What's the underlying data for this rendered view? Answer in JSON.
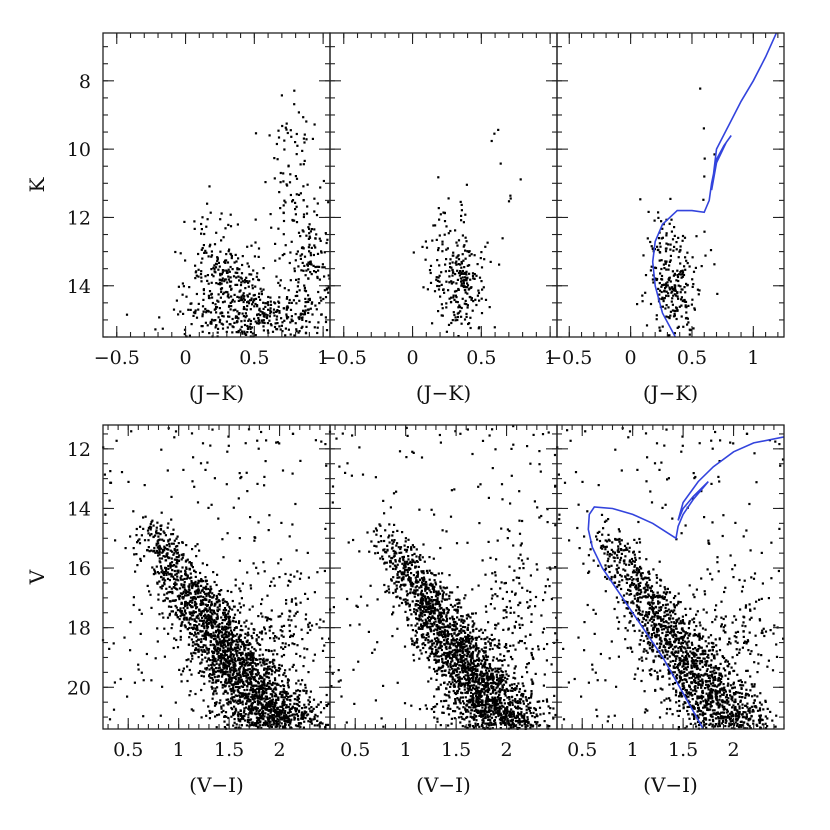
{
  "chart_data": [
    {
      "type": "scatter",
      "group": "top",
      "xlabel": "(J−K)",
      "ylabel": "K",
      "xlim": [
        -0.6,
        1.05
      ],
      "ylim": [
        15.5,
        6.6
      ],
      "x_ticks": [
        -0.5,
        0,
        0.5,
        1
      ],
      "x_tick_labels": [
        "−0.5",
        "0",
        "0.5",
        "1"
      ],
      "y_ticks": [
        8,
        10,
        12,
        14
      ],
      "y_tick_labels": [
        "8",
        "10",
        "12",
        "14"
      ],
      "point_clusters": [
        {
          "cx": 0.55,
          "cy": 14.9,
          "sx": 0.3,
          "sy": 0.4,
          "n": 380
        },
        {
          "cx": 0.3,
          "cy": 13.8,
          "sx": 0.15,
          "sy": 0.6,
          "n": 230
        },
        {
          "cx": 0.9,
          "cy": 13.0,
          "sx": 0.1,
          "sy": 0.8,
          "n": 150
        },
        {
          "cx": 0.75,
          "cy": 11.3,
          "sx": 0.1,
          "sy": 1.0,
          "n": 60
        },
        {
          "cx": 0.8,
          "cy": 9.0,
          "sx": 0.1,
          "sy": 0.7,
          "n": 18
        },
        {
          "cx": 0.2,
          "cy": 12.5,
          "sx": 0.12,
          "sy": 0.8,
          "n": 25
        }
      ]
    },
    {
      "type": "scatter",
      "group": "top",
      "xlabel": "(J−K)",
      "xlim": [
        -0.6,
        1.05
      ],
      "ylim": [
        15.5,
        6.6
      ],
      "x_ticks": [
        -0.5,
        0,
        0.5,
        1
      ],
      "x_tick_labels": [
        "−0.5",
        "0",
        "0.5",
        "1"
      ],
      "point_clusters": [
        {
          "cx": 0.35,
          "cy": 14.0,
          "sx": 0.1,
          "sy": 0.7,
          "n": 230
        },
        {
          "cx": 0.25,
          "cy": 12.5,
          "sx": 0.08,
          "sy": 0.6,
          "n": 40
        },
        {
          "cx": 0.65,
          "cy": 11.0,
          "sx": 0.05,
          "sy": 1.5,
          "n": 10
        }
      ]
    },
    {
      "type": "scatter",
      "group": "top",
      "xlabel": "(J−K)",
      "xlim": [
        -0.6,
        1.25
      ],
      "ylim": [
        15.5,
        6.6
      ],
      "x_ticks": [
        -0.5,
        0,
        0.5,
        1
      ],
      "x_tick_labels": [
        "−0.5",
        "0",
        "0.5",
        "1"
      ],
      "point_clusters": [
        {
          "cx": 0.35,
          "cy": 14.0,
          "sx": 0.1,
          "sy": 0.7,
          "n": 230
        },
        {
          "cx": 0.25,
          "cy": 12.5,
          "sx": 0.08,
          "sy": 0.6,
          "n": 40
        },
        {
          "cx": 0.65,
          "cy": 11.0,
          "sx": 0.05,
          "sy": 1.5,
          "n": 10
        }
      ],
      "isochrone": {
        "color": "#3344dd",
        "points": [
          [
            0.38,
            15.6
          ],
          [
            0.26,
            14.8
          ],
          [
            0.2,
            14.0
          ],
          [
            0.18,
            13.3
          ],
          [
            0.2,
            12.7
          ],
          [
            0.26,
            12.2
          ],
          [
            0.38,
            11.8
          ],
          [
            0.5,
            11.8
          ],
          [
            0.6,
            11.85
          ],
          [
            0.64,
            11.5
          ],
          [
            0.66,
            11.0
          ],
          [
            0.7,
            10.3
          ],
          [
            0.76,
            9.9
          ],
          [
            0.82,
            9.6
          ],
          [
            0.78,
            9.8
          ],
          [
            0.7,
            10.4
          ],
          [
            0.66,
            11.2
          ],
          [
            0.7,
            10.0
          ],
          [
            0.8,
            9.3
          ],
          [
            0.9,
            8.6
          ],
          [
            1.0,
            8.0
          ],
          [
            1.1,
            7.3
          ],
          [
            1.2,
            6.5
          ]
        ]
      }
    },
    {
      "type": "scatter",
      "group": "bottom",
      "xlabel": "(V−I)",
      "ylabel": "V",
      "xlim": [
        0.25,
        2.5
      ],
      "ylim": [
        21.4,
        11.2
      ],
      "x_ticks": [
        0.5,
        1,
        1.5,
        2
      ],
      "x_tick_labels": [
        "0.5",
        "1",
        "1.5",
        "2"
      ],
      "y_ticks": [
        12,
        14,
        16,
        18,
        20
      ],
      "y_tick_labels": [
        "12",
        "14",
        "16",
        "18",
        "20"
      ],
      "main_sequence": {
        "x_top": 0.65,
        "y_top": 14.3,
        "x_bottom": 2.0,
        "y_bottom": 21.4,
        "width": 0.18,
        "n": 2400
      },
      "red_giants": {
        "cx": 2.05,
        "cy": 17.8,
        "sx": 0.22,
        "sy": 1.2,
        "n": 150
      },
      "field": {
        "n": 220
      }
    },
    {
      "type": "scatter",
      "group": "bottom",
      "xlabel": "(V−I)",
      "xlim": [
        0.25,
        2.5
      ],
      "ylim": [
        21.4,
        11.2
      ],
      "x_ticks": [
        0.5,
        1,
        1.5,
        2
      ],
      "x_tick_labels": [
        "0.5",
        "1",
        "1.5",
        "2"
      ],
      "main_sequence": {
        "x_top": 0.75,
        "y_top": 14.5,
        "x_bottom": 2.0,
        "y_bottom": 21.4,
        "width": 0.17,
        "n": 2200
      },
      "red_giants": {
        "cx": 2.1,
        "cy": 17.6,
        "sx": 0.22,
        "sy": 1.2,
        "n": 120
      },
      "field": {
        "n": 200
      }
    },
    {
      "type": "scatter",
      "group": "bottom",
      "xlabel": "(V−I)",
      "xlim": [
        0.25,
        2.5
      ],
      "ylim": [
        21.4,
        11.2
      ],
      "x_ticks": [
        0.5,
        1,
        1.5,
        2
      ],
      "x_tick_labels": [
        "0.5",
        "1",
        "1.5",
        "2"
      ],
      "main_sequence": {
        "x_top": 0.65,
        "y_top": 14.5,
        "x_bottom": 2.0,
        "y_bottom": 21.4,
        "width": 0.17,
        "n": 1600
      },
      "red_giants": {
        "cx": 2.05,
        "cy": 18.0,
        "sx": 0.22,
        "sy": 1.2,
        "n": 140
      },
      "field": {
        "n": 200
      },
      "isochrone": {
        "color": "#3344dd",
        "points": [
          [
            1.7,
            21.4
          ],
          [
            1.5,
            20.2
          ],
          [
            1.3,
            19.0
          ],
          [
            1.1,
            18.0
          ],
          [
            0.9,
            17.0
          ],
          [
            0.7,
            16.0
          ],
          [
            0.6,
            15.3
          ],
          [
            0.56,
            14.7
          ],
          [
            0.57,
            14.2
          ],
          [
            0.62,
            13.95
          ],
          [
            0.8,
            14.0
          ],
          [
            1.0,
            14.2
          ],
          [
            1.2,
            14.5
          ],
          [
            1.36,
            14.85
          ],
          [
            1.43,
            15.0
          ],
          [
            1.45,
            14.6
          ],
          [
            1.5,
            14.2
          ],
          [
            1.6,
            13.7
          ],
          [
            1.75,
            13.1
          ],
          [
            1.6,
            13.6
          ],
          [
            1.5,
            14.0
          ],
          [
            1.45,
            14.4
          ],
          [
            1.5,
            13.8
          ],
          [
            1.65,
            13.1
          ],
          [
            1.8,
            12.6
          ],
          [
            2.0,
            12.1
          ],
          [
            2.2,
            11.8
          ],
          [
            2.5,
            11.6
          ]
        ]
      }
    }
  ]
}
